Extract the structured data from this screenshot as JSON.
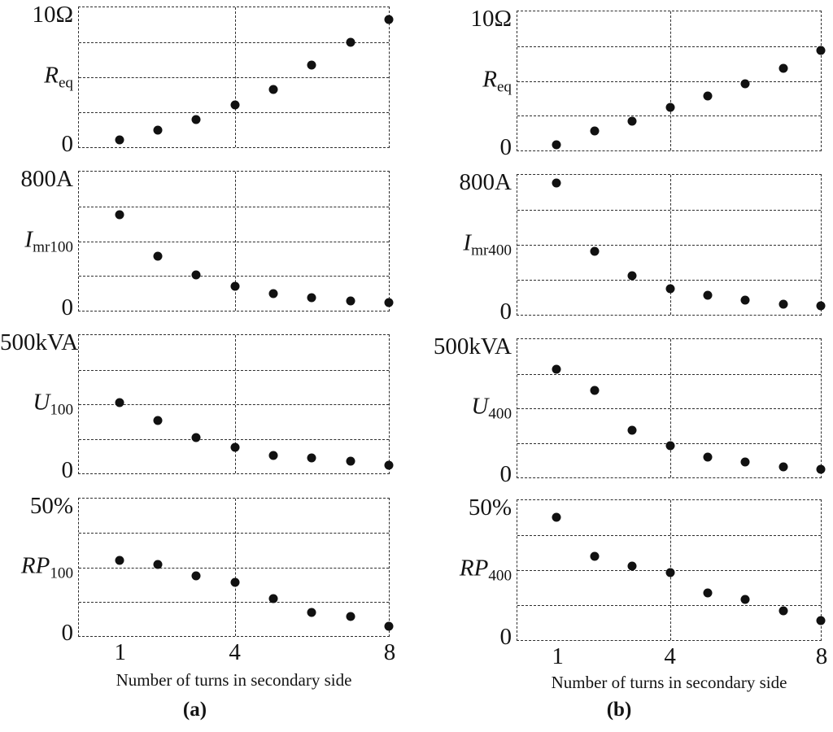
{
  "figure": {
    "xlabel": "Number of turns in secondary side",
    "x_ticks": [
      "1",
      "4",
      "8"
    ],
    "captions": {
      "a": "(a)",
      "b": "(b)"
    }
  },
  "colors": {
    "marker": "#111111",
    "gridline": "#2e2e2e",
    "text": "#141414",
    "background": "#ffffff"
  },
  "chart_data": [
    {
      "id": "a-Req",
      "column": "a",
      "type": "scatter",
      "ylabel": "R_eq",
      "quantity": {
        "main": "R",
        "sub": "eq"
      },
      "y_top_label": "10Ω",
      "y_zero_label": "0",
      "ylim": [
        0,
        10
      ],
      "x": [
        1,
        2,
        3,
        4,
        5,
        6,
        7,
        8
      ],
      "values": [
        0.5,
        1.2,
        2.0,
        3.0,
        4.1,
        5.9,
        7.5,
        9.1
      ],
      "xlabel": "Number of turns in secondary side",
      "grid": "dashed"
    },
    {
      "id": "a-Imr100",
      "column": "a",
      "type": "scatter",
      "ylabel": "I_mr100",
      "quantity": {
        "main": "I",
        "sub": "mr100"
      },
      "y_top_label": "800A",
      "y_zero_label": "0",
      "ylim": [
        0,
        800
      ],
      "x": [
        1,
        2,
        3,
        4,
        5,
        6,
        7,
        8
      ],
      "values": [
        550,
        315,
        205,
        140,
        97,
        74,
        55,
        46
      ],
      "xlabel": "Number of turns in secondary side",
      "grid": "dashed"
    },
    {
      "id": "a-U100",
      "column": "a",
      "type": "scatter",
      "ylabel": "U_100",
      "quantity": {
        "main": "U",
        "sub": "100"
      },
      "y_top_label": "500kVA",
      "y_zero_label": "0",
      "ylim": [
        0,
        500
      ],
      "x": [
        1,
        2,
        3,
        4,
        5,
        6,
        7,
        8
      ],
      "values": [
        255,
        190,
        130,
        93,
        64,
        55,
        44,
        30
      ],
      "xlabel": "Number of turns in secondary side",
      "grid": "dashed"
    },
    {
      "id": "a-RP100",
      "column": "a",
      "type": "scatter",
      "ylabel": "RP_100",
      "quantity": {
        "main": "RP",
        "sub": "100"
      },
      "y_top_label": "50%",
      "y_zero_label": "0",
      "ylim": [
        0,
        50
      ],
      "x": [
        1,
        2,
        3,
        4,
        5,
        6,
        7,
        8
      ],
      "values": [
        27.5,
        26,
        22,
        19.5,
        13.5,
        8.5,
        7,
        3.5
      ],
      "xlabel": "Number of turns in secondary side",
      "grid": "dashed"
    },
    {
      "id": "b-Req",
      "column": "b",
      "type": "scatter",
      "ylabel": "R_eq",
      "quantity": {
        "main": "R",
        "sub": "eq"
      },
      "y_top_label": "10Ω",
      "y_zero_label": "0",
      "ylim": [
        0,
        10
      ],
      "x": [
        1,
        2,
        3,
        4,
        5,
        6,
        7,
        8
      ],
      "values": [
        0.4,
        1.4,
        2.1,
        3.1,
        3.9,
        4.8,
        5.9,
        7.2
      ],
      "xlabel": "Number of turns in secondary side",
      "grid": "dashed"
    },
    {
      "id": "b-Imr400",
      "column": "b",
      "type": "scatter",
      "ylabel": "I_mr400",
      "quantity": {
        "main": "I",
        "sub": "mr400"
      },
      "y_top_label": "800A",
      "y_zero_label": "0",
      "ylim": [
        0,
        800
      ],
      "x": [
        1,
        2,
        3,
        4,
        5,
        6,
        7,
        8
      ],
      "values": [
        755,
        365,
        225,
        150,
        110,
        83,
        60,
        50
      ],
      "xlabel": "Number of turns in secondary side",
      "grid": "dashed"
    },
    {
      "id": "b-U400",
      "column": "b",
      "type": "scatter",
      "ylabel": "U_400",
      "quantity": {
        "main": "U",
        "sub": "400"
      },
      "y_top_label": "500kVA",
      "y_zero_label": "0",
      "ylim": [
        0,
        500
      ],
      "x": [
        1,
        2,
        3,
        4,
        5,
        6,
        7,
        8
      ],
      "values": [
        390,
        315,
        170,
        115,
        73,
        55,
        38,
        30
      ],
      "xlabel": "Number of turns in secondary side",
      "grid": "dashed"
    },
    {
      "id": "b-RP400",
      "column": "b",
      "type": "scatter",
      "ylabel": "RP_400",
      "quantity": {
        "main": "RP",
        "sub": "400"
      },
      "y_top_label": "50%",
      "y_zero_label": "0",
      "ylim": [
        0,
        50
      ],
      "x": [
        1,
        2,
        3,
        4,
        5,
        6,
        7,
        8
      ],
      "values": [
        44,
        30,
        26.5,
        24,
        17,
        14.5,
        10.5,
        7
      ],
      "xlabel": "Number of turns in secondary side",
      "grid": "dashed"
    }
  ]
}
